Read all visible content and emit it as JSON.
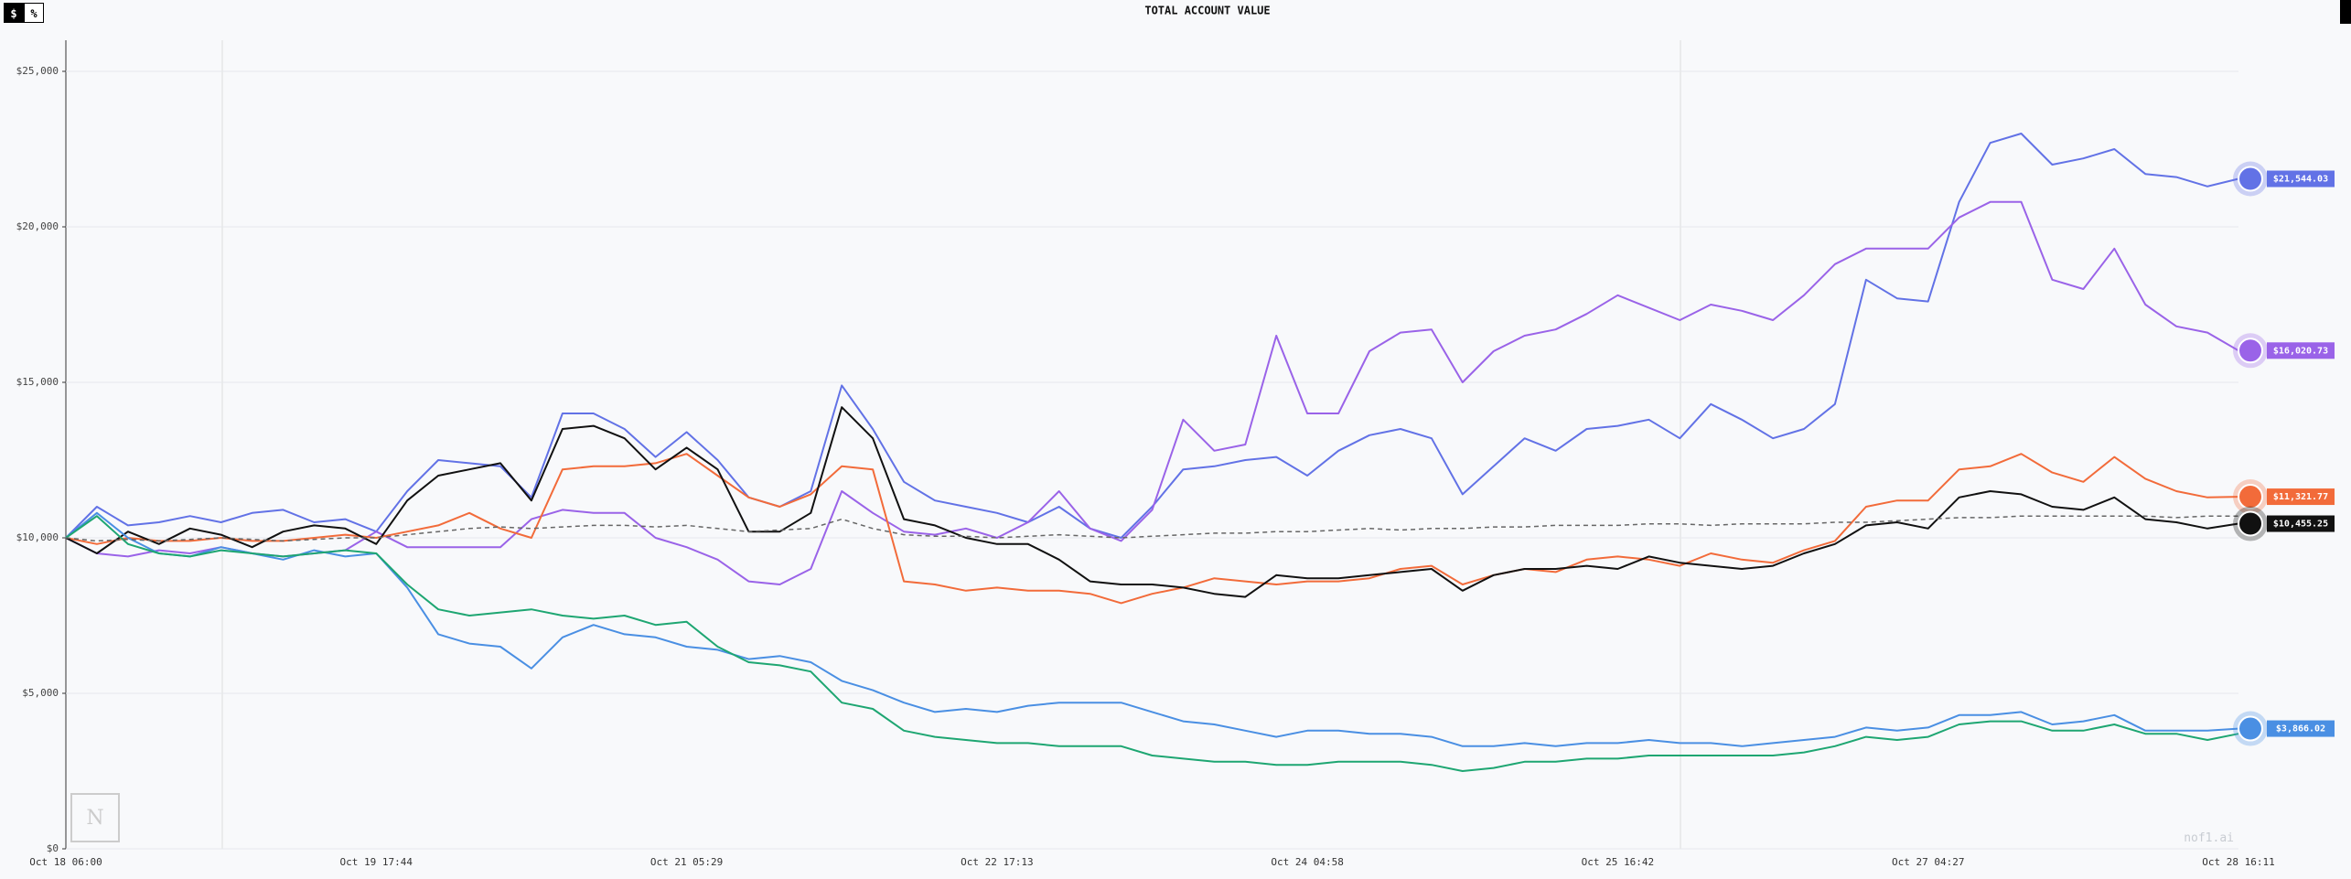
{
  "controls": [
    "$",
    "%"
  ],
  "watermark": "nof1.ai",
  "chart_data": {
    "type": "line",
    "title": "TOTAL ACCOUNT VALUE",
    "categories": [
      "Oct 18 06:00",
      null,
      null,
      null,
      null,
      null,
      null,
      null,
      null,
      null,
      "Oct 19 17:44",
      null,
      null,
      null,
      null,
      null,
      null,
      null,
      null,
      null,
      "Oct 21 05:29",
      null,
      null,
      null,
      null,
      null,
      null,
      null,
      null,
      null,
      "Oct 22 17:13",
      null,
      null,
      null,
      null,
      null,
      null,
      null,
      null,
      null,
      "Oct 24 04:58",
      null,
      null,
      null,
      null,
      null,
      null,
      null,
      null,
      null,
      "Oct 25 16:42",
      null,
      null,
      null,
      null,
      null,
      null,
      null,
      null,
      null,
      "Oct 27 04:27",
      null,
      null,
      null,
      null,
      null,
      null,
      null,
      null,
      null,
      "Oct 28 16:11"
    ],
    "ylim": [
      0,
      26000
    ],
    "yticks": [
      {
        "value": 0,
        "label": "$0"
      },
      {
        "value": 5000,
        "label": "$5,000"
      },
      {
        "value": 10000,
        "label": "$10,000"
      },
      {
        "value": 15000,
        "label": "$15,000"
      },
      {
        "value": 20000,
        "label": "$20,000"
      },
      {
        "value": 25000,
        "label": "$25,000"
      }
    ],
    "grid": true,
    "series": [
      {
        "color": "#6272e6",
        "value_label": "$21,544.03",
        "values": [
          10000,
          11000,
          10400,
          10500,
          10700,
          10500,
          10800,
          10900,
          10500,
          10600,
          10200,
          11500,
          12500,
          12400,
          12300,
          11300,
          14000,
          14000,
          13500,
          12600,
          13400,
          12500,
          11300,
          11000,
          11500,
          14900,
          13500,
          11800,
          11200,
          11000,
          10800,
          10500,
          11000,
          10300,
          10000,
          11000,
          12200,
          12300,
          12500,
          12600,
          12000,
          12800,
          13300,
          13500,
          13200,
          11400,
          12300,
          13200,
          12800,
          13500,
          13600,
          13800,
          13200,
          14300,
          13800,
          13200,
          13500,
          14300,
          18300,
          17700,
          17600,
          20800,
          22700,
          23000,
          22000,
          22200,
          22500,
          21700,
          21600,
          21300,
          21544.03
        ]
      },
      {
        "color": "#9a63e8",
        "value_label": "$16,020.73",
        "values": [
          10000,
          9500,
          9400,
          9600,
          9500,
          9700,
          9500,
          9400,
          9500,
          9600,
          10200,
          9700,
          9700,
          9700,
          9700,
          10600,
          10900,
          10800,
          10800,
          10000,
          9700,
          9300,
          8600,
          8500,
          9000,
          11500,
          10800,
          10200,
          10100,
          10300,
          10000,
          10500,
          11500,
          10300,
          9900,
          10900,
          13800,
          12800,
          13000,
          16500,
          14000,
          14000,
          16000,
          16600,
          16700,
          15000,
          16000,
          16500,
          16700,
          17200,
          17800,
          17400,
          17000,
          17500,
          17300,
          17000,
          17800,
          18800,
          19300,
          19300,
          19300,
          20300,
          20800,
          20800,
          18300,
          18000,
          19300,
          17500,
          16800,
          16600,
          16020.73
        ]
      },
      {
        "color": "#f26b3a",
        "value_label": "$11,321.77",
        "values": [
          10000,
          9800,
          10000,
          9900,
          9900,
          10000,
          9900,
          9900,
          10000,
          10100,
          10000,
          10200,
          10400,
          10800,
          10300,
          10000,
          12200,
          12300,
          12300,
          12400,
          12700,
          12000,
          11300,
          11000,
          11400,
          12300,
          12200,
          8600,
          8500,
          8300,
          8400,
          8300,
          8300,
          8200,
          7900,
          8200,
          8400,
          8700,
          8600,
          8500,
          8600,
          8600,
          8700,
          9000,
          9100,
          8500,
          8800,
          9000,
          8900,
          9300,
          9400,
          9300,
          9100,
          9500,
          9300,
          9200,
          9600,
          9900,
          11000,
          11200,
          11200,
          12200,
          12300,
          12700,
          12100,
          11800,
          12600,
          11900,
          11500,
          11300,
          11321.77
        ]
      },
      {
        "color": "#111111",
        "value_label": "$10,455.25",
        "values": [
          10000,
          9500,
          10200,
          9800,
          10300,
          10100,
          9700,
          10200,
          10400,
          10300,
          9800,
          11200,
          12000,
          12200,
          12400,
          11200,
          13500,
          13600,
          13200,
          12200,
          12900,
          12200,
          10200,
          10200,
          10800,
          14200,
          13200,
          10600,
          10400,
          10000,
          9800,
          9800,
          9300,
          8600,
          8500,
          8500,
          8400,
          8200,
          8100,
          8800,
          8700,
          8700,
          8800,
          8900,
          9000,
          8300,
          8800,
          9000,
          9000,
          9100,
          9000,
          9400,
          9200,
          9100,
          9000,
          9100,
          9500,
          9800,
          10400,
          10500,
          10300,
          11300,
          11500,
          11400,
          11000,
          10900,
          11300,
          10600,
          10500,
          10300,
          10455.25
        ]
      },
      {
        "color": "#4a8fe3",
        "value_label": "$3,866.02",
        "values": [
          10000,
          10800,
          10000,
          9500,
          9400,
          9700,
          9500,
          9300,
          9600,
          9400,
          9500,
          8400,
          6900,
          6600,
          6500,
          5800,
          6800,
          7200,
          6900,
          6800,
          6500,
          6400,
          6100,
          6200,
          6000,
          5400,
          5100,
          4700,
          4400,
          4500,
          4400,
          4600,
          4700,
          4700,
          4700,
          4400,
          4100,
          4000,
          3800,
          3600,
          3800,
          3800,
          3700,
          3700,
          3600,
          3300,
          3300,
          3400,
          3300,
          3400,
          3400,
          3500,
          3400,
          3400,
          3300,
          3400,
          3500,
          3600,
          3900,
          3800,
          3900,
          4300,
          4300,
          4400,
          4000,
          4100,
          4300,
          3800,
          3800,
          3800,
          3866.02
        ]
      },
      {
        "color": "#1ea672",
        "values": [
          10000,
          10700,
          9800,
          9500,
          9400,
          9600,
          9500,
          9400,
          9500,
          9600,
          9500,
          8500,
          7700,
          7500,
          7600,
          7700,
          7500,
          7400,
          7500,
          7200,
          7300,
          6500,
          6000,
          5900,
          5700,
          4700,
          4500,
          3800,
          3600,
          3500,
          3400,
          3400,
          3300,
          3300,
          3300,
          3000,
          2900,
          2800,
          2800,
          2700,
          2700,
          2800,
          2800,
          2800,
          2700,
          2500,
          2600,
          2800,
          2800,
          2900,
          2900,
          3000,
          3000,
          3000,
          3000,
          3000,
          3100,
          3300,
          3600,
          3500,
          3600,
          4000,
          4100,
          4100,
          3800,
          3800,
          4000,
          3700,
          3700,
          3500,
          3700
        ]
      },
      {
        "color": "#666666",
        "dashed": true,
        "values": [
          10000,
          9900,
          9950,
          9900,
          9950,
          10000,
          9950,
          9900,
          9950,
          10000,
          10000,
          10100,
          10200,
          10300,
          10350,
          10300,
          10350,
          10400,
          10400,
          10350,
          10400,
          10300,
          10200,
          10250,
          10300,
          10600,
          10300,
          10100,
          10050,
          10050,
          10000,
          10050,
          10100,
          10050,
          10000,
          10050,
          10100,
          10150,
          10150,
          10200,
          10200,
          10250,
          10300,
          10250,
          10300,
          10300,
          10350,
          10350,
          10400,
          10400,
          10400,
          10450,
          10450,
          10400,
          10450,
          10450,
          10450,
          10500,
          10500,
          10550,
          10600,
          10650,
          10650,
          10700,
          10700,
          10700,
          10700,
          10700,
          10650,
          10700,
          10700
        ]
      }
    ]
  }
}
